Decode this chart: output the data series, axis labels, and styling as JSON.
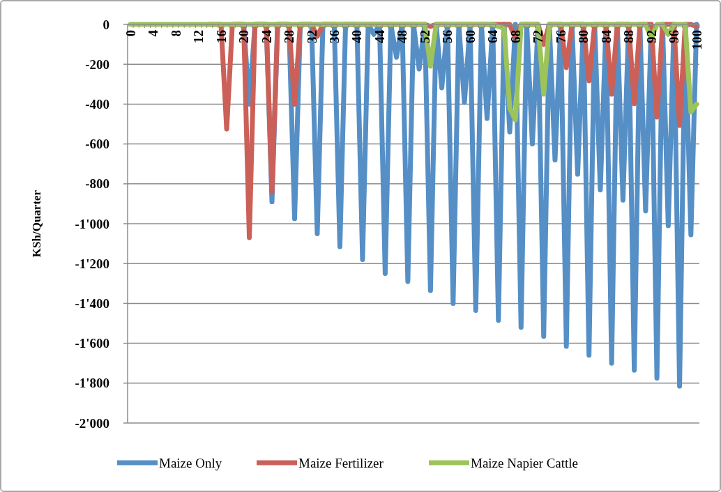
{
  "chart_data": {
    "type": "line",
    "ylabel": "KSh/Quarter",
    "categories": [
      "0",
      null,
      null,
      null,
      "4",
      null,
      null,
      null,
      "8",
      null,
      null,
      null,
      "12",
      null,
      null,
      null,
      "16",
      null,
      null,
      null,
      "20",
      null,
      null,
      null,
      "24",
      null,
      null,
      null,
      "28",
      null,
      null,
      null,
      "32",
      null,
      null,
      null,
      "36",
      null,
      null,
      null,
      "40",
      null,
      null,
      null,
      "44",
      null,
      null,
      null,
      "48",
      null,
      null,
      null,
      "52",
      null,
      null,
      null,
      "56",
      null,
      null,
      null,
      "60",
      null,
      null,
      null,
      "64",
      null,
      null,
      null,
      "68",
      null,
      null,
      null,
      "72",
      null,
      null,
      null,
      "76",
      null,
      null,
      null,
      "80",
      null,
      null,
      null,
      "84",
      null,
      null,
      null,
      "88",
      null,
      null,
      null,
      "92",
      null,
      null,
      null,
      "96",
      null,
      null,
      null,
      "100"
    ],
    "series": [
      {
        "name": "Maize Only",
        "color": "#558fc6",
        "values": [
          null,
          null,
          null,
          null,
          null,
          null,
          null,
          null,
          null,
          null,
          null,
          null,
          null,
          null,
          null,
          null,
          null,
          null,
          null,
          0,
          0,
          -400,
          0,
          0,
          0,
          -890,
          0,
          0,
          0,
          -975,
          0,
          0,
          0,
          -1050,
          0,
          0,
          0,
          -1115,
          0,
          0,
          0,
          -1180,
          0,
          -50,
          0,
          -1250,
          0,
          -165,
          0,
          -1290,
          0,
          -224,
          0,
          -1335,
          0,
          -318,
          0,
          -1400,
          0,
          -392,
          0,
          -1435,
          0,
          -472,
          0,
          -1485,
          0,
          -540,
          0,
          -1520,
          0,
          -600,
          0,
          -1565,
          0,
          -680,
          0,
          -1615,
          0,
          -752,
          0,
          -1660,
          0,
          -830,
          0,
          -1700,
          0,
          -882,
          0,
          -1735,
          0,
          -936,
          0,
          -1775,
          0,
          -1010,
          0,
          -1815,
          0,
          -1056,
          0
        ]
      },
      {
        "name": "Maize Fertilizer",
        "color": "#cb6058",
        "values": [
          null,
          null,
          null,
          null,
          null,
          null,
          null,
          null,
          null,
          null,
          null,
          null,
          null,
          null,
          0,
          0,
          0,
          -525,
          0,
          0,
          0,
          -1070,
          0,
          0,
          0,
          -840,
          0,
          0,
          0,
          -400,
          0,
          0,
          0,
          -60,
          0,
          0,
          0,
          0,
          0,
          0,
          0,
          0,
          0,
          0,
          0,
          0,
          0,
          0,
          0,
          0,
          0,
          0,
          0,
          -10,
          0,
          0,
          0,
          0,
          0,
          0,
          0,
          0,
          0,
          0,
          0,
          0,
          0,
          0,
          -70,
          0,
          0,
          0,
          0,
          -100,
          0,
          0,
          0,
          -217,
          0,
          0,
          0,
          -283,
          0,
          0,
          0,
          -350,
          0,
          0,
          0,
          -398,
          0,
          0,
          0,
          -465,
          0,
          0,
          0,
          -507,
          0,
          0,
          -10
        ]
      },
      {
        "name": "Maize Napier Cattle",
        "color": "#9dc35a",
        "values": [
          0,
          0,
          0,
          0,
          0,
          0,
          0,
          0,
          0,
          0,
          0,
          0,
          0,
          0,
          0,
          0,
          0,
          0,
          0,
          0,
          0,
          0,
          0,
          0,
          0,
          0,
          0,
          0,
          0,
          0,
          0,
          0,
          0,
          0,
          0,
          0,
          0,
          0,
          0,
          0,
          0,
          0,
          0,
          0,
          0,
          0,
          0,
          0,
          0,
          0,
          0,
          0,
          0,
          -210,
          0,
          0,
          0,
          0,
          0,
          0,
          0,
          0,
          0,
          0,
          0,
          -10,
          -20,
          -420,
          -480,
          0,
          0,
          0,
          0,
          -350,
          0,
          0,
          0,
          0,
          0,
          0,
          0,
          0,
          0,
          0,
          0,
          0,
          0,
          0,
          0,
          0,
          0,
          0,
          -70,
          0,
          0,
          -50,
          0,
          0,
          0,
          -440,
          -400
        ]
      }
    ],
    "ylim": [
      -2000,
      0
    ],
    "yticks": [
      {
        "value": -2000,
        "label": "-2'000"
      },
      {
        "value": -1800,
        "label": "-1'800"
      },
      {
        "value": -1600,
        "label": "-1'600"
      },
      {
        "value": -1400,
        "label": "-1'400"
      },
      {
        "value": -1200,
        "label": "-1'200"
      },
      {
        "value": -1000,
        "label": "-1'000"
      },
      -800,
      -600,
      -400,
      -200,
      0
    ],
    "grid": "y",
    "legend": "bottom",
    "marker": "none",
    "line_style": "solid"
  }
}
